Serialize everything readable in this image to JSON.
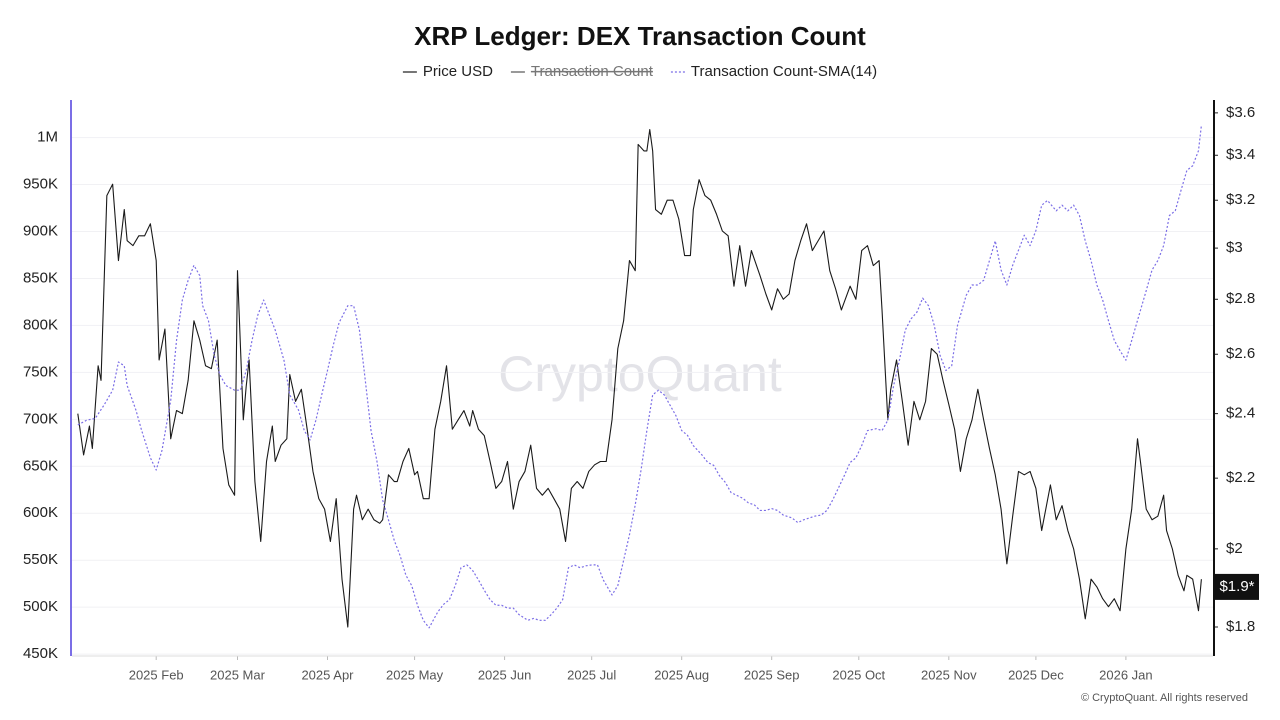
{
  "chart_data": {
    "type": "line",
    "title": "XRP Ledger: DEX Transaction Count",
    "watermark": "CryptoQuant",
    "source": "© CryptoQuant. All rights reserved",
    "xlim": [
      2,
      395
    ],
    "xticks": [
      {
        "value": 31,
        "label": "2025 Feb"
      },
      {
        "value": 59,
        "label": "2025 Mar"
      },
      {
        "value": 90,
        "label": "2025 Apr"
      },
      {
        "value": 120,
        "label": "2025 May"
      },
      {
        "value": 151,
        "label": "2025 Jun"
      },
      {
        "value": 181,
        "label": "2025 Jul"
      },
      {
        "value": 212,
        "label": "2025 Aug"
      },
      {
        "value": 243,
        "label": "2025 Sep"
      },
      {
        "value": 273,
        "label": "2025 Oct"
      },
      {
        "value": 304,
        "label": "2025 Nov"
      },
      {
        "value": 334,
        "label": "2025 Dec"
      },
      {
        "value": 365,
        "label": "2026 Jan"
      }
    ],
    "ylim": [
      448000,
      1040000
    ],
    "yticks": [
      {
        "value": 450000,
        "label": "450K"
      },
      {
        "value": 500000,
        "label": "500K"
      },
      {
        "value": 550000,
        "label": "550K"
      },
      {
        "value": 600000,
        "label": "600K"
      },
      {
        "value": 650000,
        "label": "650K"
      },
      {
        "value": 700000,
        "label": "700K"
      },
      {
        "value": 750000,
        "label": "750K"
      },
      {
        "value": 800000,
        "label": "800K"
      },
      {
        "value": 850000,
        "label": "850K"
      },
      {
        "value": 900000,
        "label": "900K"
      },
      {
        "value": 950000,
        "label": "950K"
      },
      {
        "value": 1000000,
        "label": "1M"
      }
    ],
    "y2lim": [
      1.731,
      3.663
    ],
    "y2scale": "log",
    "y2ticks": [
      {
        "value": 1.8,
        "label": "$1.8"
      },
      {
        "value": 2,
        "label": "$2"
      },
      {
        "value": 2.2,
        "label": "$2.2"
      },
      {
        "value": 2.4,
        "label": "$2.4"
      },
      {
        "value": 2.6,
        "label": "$2.6"
      },
      {
        "value": 2.8,
        "label": "$2.8"
      },
      {
        "value": 3,
        "label": "$3"
      },
      {
        "value": 3.2,
        "label": "$3.2"
      },
      {
        "value": 3.4,
        "label": "$3.4"
      },
      {
        "value": 3.6,
        "label": "$3.6"
      }
    ],
    "grid": true,
    "legend": "top",
    "annotations": [
      {
        "text": "$1.9*",
        "value": 1.9,
        "axis": "y2"
      }
    ],
    "series": [
      {
        "name": "Price USD",
        "color": "#1a1a1a",
        "axis": "y2",
        "line_style": "solid",
        "x": [
          4,
          6,
          8,
          9,
          11,
          12,
          14,
          16,
          18,
          20,
          21,
          23,
          25,
          27,
          29,
          31,
          32,
          34,
          36,
          38,
          40,
          42,
          44,
          46,
          48,
          50,
          52,
          54,
          56,
          58,
          59,
          61,
          62,
          63,
          65,
          67,
          69,
          71,
          72,
          74,
          76,
          77,
          79,
          81,
          83,
          85,
          87,
          89,
          91,
          93,
          95,
          97,
          99,
          100,
          102,
          104,
          106,
          108,
          109,
          111,
          113,
          114,
          116,
          118,
          120,
          121,
          123,
          125,
          127,
          129,
          131,
          133,
          135,
          137,
          139,
          140,
          142,
          144,
          146,
          148,
          150,
          152,
          154,
          156,
          158,
          160,
          162,
          164,
          166,
          168,
          170,
          172,
          174,
          176,
          178,
          180,
          182,
          184,
          186,
          188,
          190,
          192,
          194,
          196,
          197,
          199,
          200,
          201,
          202,
          203,
          205,
          207,
          209,
          211,
          213,
          215,
          216,
          218,
          220,
          222,
          224,
          226,
          228,
          230,
          232,
          234,
          236,
          239,
          241,
          243,
          245,
          247,
          249,
          251,
          253,
          255,
          257,
          259,
          261,
          263,
          265,
          267,
          270,
          272,
          274,
          276,
          278,
          280,
          281,
          283,
          284,
          286,
          288,
          290,
          292,
          294,
          296,
          298,
          300,
          302,
          304,
          306,
          308,
          310,
          312,
          314,
          316,
          318,
          320,
          322,
          324,
          326,
          328,
          330,
          332,
          334,
          336,
          339,
          341,
          343,
          345,
          347,
          349,
          351,
          353,
          355,
          357,
          359,
          361,
          363,
          365,
          367,
          369,
          370,
          372,
          374,
          376,
          378,
          379,
          381,
          383,
          385,
          386,
          388,
          390,
          391
        ],
        "values": [
          2.4,
          2.27,
          2.36,
          2.29,
          2.56,
          2.51,
          3.22,
          3.27,
          2.95,
          3.16,
          3.03,
          3.01,
          3.05,
          3.05,
          3.1,
          2.95,
          2.58,
          2.69,
          2.32,
          2.41,
          2.4,
          2.51,
          2.72,
          2.65,
          2.56,
          2.55,
          2.65,
          2.29,
          2.18,
          2.15,
          2.91,
          2.38,
          2.49,
          2.58,
          2.19,
          2.02,
          2.25,
          2.36,
          2.25,
          2.3,
          2.32,
          2.53,
          2.44,
          2.48,
          2.35,
          2.22,
          2.14,
          2.11,
          2.02,
          2.14,
          1.92,
          1.8,
          2.11,
          2.15,
          2.08,
          2.11,
          2.08,
          2.07,
          2.08,
          2.21,
          2.19,
          2.19,
          2.25,
          2.29,
          2.21,
          2.22,
          2.14,
          2.14,
          2.35,
          2.44,
          2.56,
          2.35,
          2.38,
          2.41,
          2.36,
          2.41,
          2.35,
          2.33,
          2.25,
          2.17,
          2.19,
          2.25,
          2.11,
          2.19,
          2.22,
          2.3,
          2.17,
          2.15,
          2.17,
          2.14,
          2.11,
          2.02,
          2.17,
          2.19,
          2.17,
          2.22,
          2.24,
          2.25,
          2.25,
          2.38,
          2.62,
          2.72,
          2.95,
          2.91,
          3.45,
          3.42,
          3.42,
          3.52,
          3.42,
          3.16,
          3.14,
          3.2,
          3.2,
          3.12,
          2.97,
          2.97,
          3.16,
          3.29,
          3.22,
          3.2,
          3.14,
          3.07,
          3.05,
          2.85,
          3.01,
          2.85,
          2.99,
          2.89,
          2.82,
          2.76,
          2.84,
          2.8,
          2.82,
          2.95,
          3.03,
          3.1,
          2.99,
          3.03,
          3.07,
          2.91,
          2.84,
          2.76,
          2.85,
          2.8,
          2.99,
          3.01,
          2.93,
          2.95,
          2.76,
          2.38,
          2.48,
          2.58,
          2.44,
          2.3,
          2.44,
          2.38,
          2.44,
          2.62,
          2.6,
          2.51,
          2.43,
          2.35,
          2.22,
          2.32,
          2.38,
          2.48,
          2.38,
          2.29,
          2.21,
          2.11,
          1.96,
          2.09,
          2.22,
          2.21,
          2.22,
          2.17,
          2.05,
          2.18,
          2.08,
          2.12,
          2.05,
          2.0,
          1.92,
          1.82,
          1.92,
          1.9,
          1.87,
          1.85,
          1.87,
          1.84,
          2.0,
          2.11,
          2.32,
          2.25,
          2.11,
          2.08,
          2.09,
          2.15,
          2.05,
          2.0,
          1.93,
          1.89,
          1.93,
          1.92,
          1.84,
          1.92
        ]
      },
      {
        "name": "Transaction Count",
        "color": "#555555",
        "hidden": true
      },
      {
        "name": "Transaction Count-SMA(14)",
        "color": "#7b6ee6",
        "line_style": "dotted",
        "x": [
          4,
          7,
          10,
          13,
          16,
          18,
          20,
          21,
          24,
          26,
          29,
          31,
          33,
          36,
          38,
          40,
          42,
          44,
          46,
          47,
          49,
          51,
          53,
          55,
          58,
          60,
          62,
          64,
          66,
          68,
          70,
          72,
          75,
          77,
          80,
          82,
          84,
          86,
          88,
          90,
          92,
          94,
          97,
          99,
          101,
          103,
          105,
          107,
          109,
          111,
          113,
          115,
          117,
          119,
          121,
          123,
          125,
          128,
          130,
          132,
          134,
          136,
          138,
          140,
          142,
          144,
          146,
          148,
          150,
          152,
          154,
          156,
          159,
          161,
          163,
          165,
          167,
          169,
          171,
          173,
          175,
          177,
          179,
          181,
          183,
          185,
          188,
          190,
          192,
          194,
          196,
          198,
          200,
          202,
          204,
          206,
          208,
          210,
          212,
          214,
          216,
          219,
          221,
          223,
          225,
          227,
          229,
          231,
          233,
          235,
          237,
          239,
          241,
          243,
          245,
          247,
          250,
          252,
          254,
          256,
          258,
          260,
          262,
          264,
          266,
          268,
          270,
          272,
          274,
          276,
          279,
          281,
          283,
          285,
          287,
          289,
          291,
          293,
          295,
          297,
          299,
          301,
          303,
          305,
          307,
          310,
          312,
          314,
          316,
          318,
          320,
          322,
          324,
          326,
          328,
          330,
          332,
          334,
          336,
          338,
          341,
          343,
          345,
          347,
          349,
          351,
          353,
          355,
          357,
          359,
          361,
          363,
          365,
          367,
          370,
          372,
          374,
          376,
          378,
          380,
          382,
          384,
          386,
          388,
          390,
          391
        ],
        "values": [
          694000,
          699000,
          701000,
          715000,
          731000,
          761000,
          757000,
          736000,
          710000,
          688000,
          659000,
          646000,
          667000,
          720000,
          784000,
          827000,
          848000,
          864000,
          853000,
          821000,
          805000,
          768000,
          747000,
          736000,
          731000,
          731000,
          752000,
          784000,
          811000,
          827000,
          811000,
          795000,
          763000,
          726000,
          710000,
          688000,
          678000,
          699000,
          726000,
          752000,
          779000,
          803000,
          821000,
          821000,
          795000,
          742000,
          688000,
          656000,
          614000,
          593000,
          571000,
          555000,
          534000,
          523000,
          502000,
          486000,
          478000,
          495000,
          503000,
          508000,
          523000,
          542000,
          545000,
          539000,
          529000,
          518000,
          508000,
          502000,
          502000,
          499000,
          499000,
          492000,
          486000,
          488000,
          486000,
          486000,
          492000,
          499000,
          508000,
          542000,
          545000,
          542000,
          544000,
          545000,
          545000,
          529000,
          513000,
          523000,
          550000,
          577000,
          609000,
          646000,
          688000,
          726000,
          731000,
          726000,
          715000,
          704000,
          688000,
          683000,
          672000,
          662000,
          654000,
          651000,
          640000,
          633000,
          622000,
          619000,
          616000,
          611000,
          609000,
          603000,
          603000,
          605000,
          603000,
          598000,
          595000,
          590000,
          593000,
          595000,
          597000,
          598000,
          603000,
          614000,
          627000,
          640000,
          654000,
          659000,
          672000,
          688000,
          690000,
          688000,
          699000,
          736000,
          763000,
          795000,
          807000,
          814000,
          829000,
          821000,
          800000,
          768000,
          752000,
          757000,
          800000,
          832000,
          843000,
          843000,
          848000,
          869000,
          890000,
          859000,
          843000,
          864000,
          880000,
          896000,
          885000,
          901000,
          928000,
          933000,
          922000,
          928000,
          922000,
          928000,
          917000,
          890000,
          869000,
          843000,
          827000,
          805000,
          784000,
          773000,
          763000,
          784000,
          816000,
          837000,
          859000,
          869000,
          885000,
          917000,
          922000,
          944000,
          965000,
          970000,
          986000,
          1013000
        ]
      }
    ]
  }
}
